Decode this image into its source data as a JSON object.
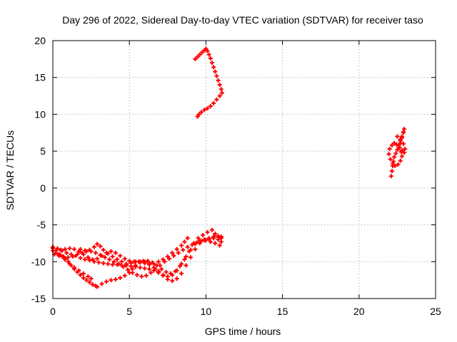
{
  "chart_data": {
    "type": "scatter",
    "title": "Day 296 of 2022, Sidereal Day-to-day VTEC variation (SDTVAR) for receiver taso",
    "xlabel": "GPS time / hours",
    "ylabel": "SDTVAR / TECUs",
    "xlim": [
      0,
      25
    ],
    "ylim": [
      -15,
      20
    ],
    "x_ticks": [
      "0",
      "5",
      "10",
      "15",
      "20",
      "25"
    ],
    "y_ticks": [
      "-15",
      "-10",
      "-5",
      "0",
      "5",
      "10",
      "15",
      "20"
    ],
    "grid": true,
    "legend": "none",
    "marker": "plus",
    "colors": {
      "series": "#ff0000",
      "grid": "#a0a0a0",
      "axis": "#000000"
    },
    "series": [
      {
        "points": [
          [
            0.0,
            -8.5
          ],
          [
            0.2,
            -8.8
          ],
          [
            0.4,
            -9.0
          ],
          [
            0.6,
            -9.3
          ],
          [
            0.8,
            -9.6
          ],
          [
            1.0,
            -10.0
          ],
          [
            1.2,
            -10.5
          ],
          [
            1.4,
            -11.0
          ],
          [
            1.6,
            -11.4
          ],
          [
            1.8,
            -11.8
          ],
          [
            2.0,
            -12.2
          ],
          [
            2.2,
            -12.5
          ],
          [
            2.4,
            -12.8
          ],
          [
            2.6,
            -13.1
          ],
          [
            2.8,
            -13.3
          ],
          [
            2.9,
            -13.4
          ],
          [
            0.0,
            -8.0
          ],
          [
            0.3,
            -8.2
          ],
          [
            0.6,
            -8.5
          ],
          [
            0.9,
            -8.8
          ],
          [
            1.2,
            -9.0
          ],
          [
            1.5,
            -9.2
          ],
          [
            1.8,
            -9.5
          ],
          [
            2.1,
            -9.7
          ],
          [
            2.4,
            -9.8
          ],
          [
            2.7,
            -10.0
          ],
          [
            3.0,
            -10.1
          ],
          [
            3.3,
            -10.2
          ],
          [
            3.6,
            -10.3
          ],
          [
            3.9,
            -10.4
          ],
          [
            4.2,
            -10.4
          ],
          [
            4.5,
            -10.5
          ],
          [
            4.8,
            -10.5
          ],
          [
            5.1,
            -10.6
          ],
          [
            5.4,
            -10.7
          ],
          [
            5.7,
            -10.8
          ],
          [
            6.0,
            -10.9
          ],
          [
            6.3,
            -11.0
          ],
          [
            6.6,
            -11.2
          ],
          [
            6.9,
            -11.5
          ],
          [
            7.2,
            -11.8
          ],
          [
            7.5,
            -12.0
          ],
          [
            7.8,
            -11.8
          ],
          [
            8.1,
            -11.2
          ],
          [
            8.4,
            -10.3
          ],
          [
            8.7,
            -9.3
          ],
          [
            9.0,
            -8.4
          ],
          [
            9.3,
            -7.6
          ],
          [
            9.6,
            -7.2
          ],
          [
            9.9,
            -7.0
          ],
          [
            10.2,
            -6.8
          ],
          [
            10.5,
            -6.8
          ],
          [
            10.8,
            -7.0
          ],
          [
            11.0,
            -7.3
          ],
          [
            0.1,
            -9.0
          ],
          [
            0.4,
            -9.2
          ],
          [
            0.7,
            -9.3
          ],
          [
            1.0,
            -9.4
          ],
          [
            1.3,
            -9.3
          ],
          [
            1.6,
            -9.0
          ],
          [
            1.9,
            -8.8
          ],
          [
            2.2,
            -8.6
          ],
          [
            2.5,
            -8.6
          ],
          [
            2.8,
            -8.8
          ],
          [
            3.1,
            -9.1
          ],
          [
            3.4,
            -9.4
          ],
          [
            3.7,
            -9.7
          ],
          [
            4.0,
            -10.0
          ],
          [
            4.3,
            -10.3
          ],
          [
            4.6,
            -10.7
          ],
          [
            4.9,
            -11.1
          ],
          [
            5.2,
            -11.5
          ],
          [
            5.5,
            -11.8
          ],
          [
            5.8,
            -12.0
          ],
          [
            6.1,
            -11.9
          ],
          [
            6.4,
            -11.5
          ],
          [
            6.7,
            -11.0
          ],
          [
            7.0,
            -10.5
          ],
          [
            7.3,
            -10.0
          ],
          [
            7.6,
            -9.6
          ],
          [
            7.9,
            -9.2
          ],
          [
            8.2,
            -8.8
          ],
          [
            8.5,
            -8.4
          ],
          [
            8.8,
            -8.0
          ],
          [
            9.1,
            -7.7
          ],
          [
            9.4,
            -7.4
          ],
          [
            9.7,
            -7.2
          ],
          [
            10.0,
            -7.1
          ],
          [
            10.3,
            -7.3
          ],
          [
            10.6,
            -7.5
          ],
          [
            10.9,
            -7.8
          ],
          [
            0.5,
            -8.4
          ],
          [
            0.8,
            -8.3
          ],
          [
            1.1,
            -8.2
          ],
          [
            1.4,
            -8.3
          ],
          [
            1.7,
            -8.6
          ],
          [
            2.0,
            -9.0
          ],
          [
            2.3,
            -9.4
          ],
          [
            2.6,
            -9.7
          ],
          [
            2.9,
            -9.6
          ],
          [
            3.2,
            -9.2
          ],
          [
            3.5,
            -8.8
          ],
          [
            3.8,
            -8.6
          ],
          [
            4.1,
            -8.8
          ],
          [
            4.4,
            -9.2
          ],
          [
            4.7,
            -9.6
          ],
          [
            5.0,
            -9.9
          ],
          [
            5.3,
            -10.0
          ],
          [
            5.6,
            -10.0
          ],
          [
            5.9,
            -9.9
          ],
          [
            6.2,
            -9.9
          ],
          [
            6.5,
            -10.1
          ],
          [
            6.8,
            -10.5
          ],
          [
            7.1,
            -11.0
          ],
          [
            7.4,
            -11.4
          ],
          [
            7.7,
            -11.6
          ],
          [
            8.0,
            -11.3
          ],
          [
            8.3,
            -10.6
          ],
          [
            8.6,
            -9.7
          ],
          [
            8.9,
            -8.6
          ],
          [
            9.2,
            -7.5
          ],
          [
            9.5,
            -6.8
          ],
          [
            9.8,
            -6.4
          ],
          [
            10.1,
            -6.0
          ],
          [
            10.4,
            -5.7
          ],
          [
            10.6,
            -6.2
          ],
          [
            10.8,
            -6.7
          ],
          [
            11.0,
            -6.6
          ],
          [
            1.8,
            -8.3
          ],
          [
            2.1,
            -8.5
          ],
          [
            2.4,
            -8.4
          ],
          [
            2.7,
            -8.0
          ],
          [
            2.9,
            -7.6
          ],
          [
            3.1,
            -7.9
          ],
          [
            3.3,
            -8.4
          ],
          [
            3.6,
            -8.9
          ],
          [
            3.9,
            -9.3
          ],
          [
            4.2,
            -9.7
          ],
          [
            4.5,
            -10.0
          ],
          [
            4.8,
            -10.3
          ],
          [
            5.1,
            -10.2
          ],
          [
            5.4,
            -10.0
          ],
          [
            5.7,
            -10.0
          ],
          [
            6.0,
            -10.2
          ],
          [
            6.3,
            -10.4
          ],
          [
            6.6,
            -10.3
          ],
          [
            6.9,
            -10.0
          ],
          [
            7.2,
            -9.7
          ],
          [
            7.5,
            -9.3
          ],
          [
            7.8,
            -8.8
          ],
          [
            8.1,
            -8.3
          ],
          [
            8.4,
            -7.8
          ],
          [
            8.6,
            -7.3
          ],
          [
            8.8,
            -6.8
          ],
          [
            3.2,
            -13.0
          ],
          [
            3.5,
            -12.7
          ],
          [
            3.8,
            -12.5
          ],
          [
            4.1,
            -12.4
          ],
          [
            4.4,
            -12.2
          ],
          [
            4.7,
            -11.9
          ],
          [
            5.0,
            -11.5
          ],
          [
            5.2,
            -11.0
          ],
          [
            5.4,
            -10.5
          ],
          [
            5.7,
            -10.1
          ],
          [
            6.0,
            -10.0
          ],
          [
            6.3,
            -10.3
          ],
          [
            6.6,
            -10.8
          ],
          [
            6.9,
            -11.3
          ],
          [
            7.2,
            -11.9
          ],
          [
            7.5,
            -12.4
          ],
          [
            7.8,
            -12.6
          ],
          [
            8.1,
            -12.3
          ],
          [
            8.4,
            -11.6
          ],
          [
            8.7,
            -10.5
          ],
          [
            9.0,
            -9.4
          ],
          [
            9.3,
            -8.3
          ],
          [
            9.6,
            -7.5
          ],
          [
            9.9,
            -7.1
          ],
          [
            10.2,
            -6.9
          ],
          [
            10.5,
            -6.6
          ],
          [
            10.8,
            -6.5
          ],
          [
            11.0,
            -6.8
          ],
          [
            0.0,
            -8.2
          ],
          [
            0.2,
            -8.5
          ],
          [
            0.5,
            -9.1
          ],
          [
            0.8,
            -9.7
          ],
          [
            1.1,
            -10.3
          ],
          [
            1.4,
            -10.8
          ],
          [
            1.7,
            -11.2
          ],
          [
            2.0,
            -11.6
          ],
          [
            2.3,
            -12.0
          ],
          [
            2.5,
            -12.3
          ],
          [
            9.3,
            17.5
          ],
          [
            9.45,
            17.8
          ],
          [
            9.6,
            18.1
          ],
          [
            9.75,
            18.4
          ],
          [
            9.9,
            18.7
          ],
          [
            10.0,
            18.9
          ],
          [
            10.1,
            18.6
          ],
          [
            10.2,
            18.1
          ],
          [
            10.3,
            17.6
          ],
          [
            10.4,
            17.0
          ],
          [
            10.5,
            16.4
          ],
          [
            10.6,
            15.8
          ],
          [
            10.7,
            15.2
          ],
          [
            10.8,
            14.6
          ],
          [
            10.9,
            14.0
          ],
          [
            11.0,
            13.4
          ],
          [
            11.05,
            12.9
          ],
          [
            10.9,
            12.5
          ],
          [
            10.7,
            12.0
          ],
          [
            10.5,
            11.5
          ],
          [
            10.3,
            11.1
          ],
          [
            10.1,
            10.8
          ],
          [
            9.9,
            10.6
          ],
          [
            9.7,
            10.3
          ],
          [
            9.55,
            10.0
          ],
          [
            9.45,
            9.7
          ],
          [
            22.1,
            1.6
          ],
          [
            22.15,
            2.3
          ],
          [
            22.2,
            3.0
          ],
          [
            22.25,
            3.6
          ],
          [
            22.3,
            4.2
          ],
          [
            22.4,
            4.7
          ],
          [
            22.5,
            5.2
          ],
          [
            22.6,
            5.8
          ],
          [
            22.7,
            6.4
          ],
          [
            22.8,
            7.0
          ],
          [
            22.9,
            7.6
          ],
          [
            22.95,
            8.0
          ],
          [
            22.9,
            7.5
          ],
          [
            22.8,
            6.8
          ],
          [
            22.7,
            6.1
          ],
          [
            22.65,
            5.5
          ],
          [
            22.75,
            4.9
          ],
          [
            22.8,
            4.3
          ],
          [
            22.7,
            3.7
          ],
          [
            22.55,
            3.2
          ],
          [
            22.35,
            3.0
          ],
          [
            22.2,
            3.3
          ],
          [
            22.05,
            3.9
          ],
          [
            21.95,
            4.6
          ],
          [
            22.0,
            5.3
          ],
          [
            22.15,
            5.8
          ],
          [
            22.3,
            6.1
          ],
          [
            22.45,
            5.9
          ],
          [
            22.6,
            5.5
          ],
          [
            22.8,
            5.1
          ],
          [
            22.95,
            4.8
          ],
          [
            23.0,
            5.3
          ],
          [
            22.9,
            6.0
          ],
          [
            22.7,
            6.6
          ],
          [
            22.5,
            7.0
          ]
        ]
      }
    ]
  }
}
